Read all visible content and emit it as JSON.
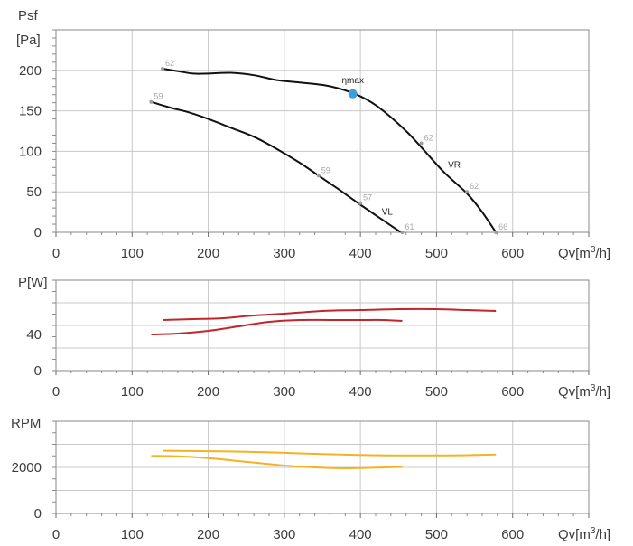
{
  "colors": {
    "pressure_curve": "#111111",
    "power": "#c0262b",
    "rpm": "#f4b223",
    "eta_max_point": "#3aa0dc"
  },
  "chart_data": [
    {
      "type": "line",
      "id": "pressure",
      "ylabel_line1": "Psf",
      "ylabel_line2": "[Pa]",
      "xlabel": "Qv[m³/h]",
      "xlim": [
        0,
        700
      ],
      "ylim": [
        0,
        250
      ],
      "xticks": [
        0,
        100,
        200,
        300,
        400,
        500,
        600
      ],
      "yticks": [
        0,
        50,
        100,
        150,
        200
      ],
      "grid": true,
      "series": [
        {
          "name": "VR",
          "points": [
            [
              140,
              202
            ],
            [
              160,
              199
            ],
            [
              180,
              196
            ],
            [
              200,
              196
            ],
            [
              230,
              197
            ],
            [
              260,
              194
            ],
            [
              290,
              188
            ],
            [
              320,
              185
            ],
            [
              350,
              182
            ],
            [
              370,
              178
            ],
            [
              390,
              172
            ],
            [
              410,
              163
            ],
            [
              430,
              150
            ],
            [
              460,
              125
            ],
            [
              480,
              105
            ],
            [
              510,
              74
            ],
            [
              540,
              48
            ],
            [
              560,
              25
            ],
            [
              578,
              0
            ]
          ],
          "annotations": [
            {
              "x": 140,
              "y": 202,
              "label": "62"
            },
            {
              "x": 480,
              "y": 110,
              "label": "62"
            },
            {
              "x": 540,
              "y": 50,
              "label": "62"
            },
            {
              "x": 578,
              "y": 0,
              "label": "66"
            }
          ]
        },
        {
          "name": "VL",
          "points": [
            [
              125,
              161
            ],
            [
              150,
              154
            ],
            [
              175,
              148
            ],
            [
              200,
              140
            ],
            [
              230,
              129
            ],
            [
              260,
              118
            ],
            [
              290,
              103
            ],
            [
              320,
              86
            ],
            [
              345,
              70
            ],
            [
              370,
              54
            ],
            [
              400,
              34
            ],
            [
              425,
              18
            ],
            [
              450,
              2
            ],
            [
              455,
              0
            ]
          ],
          "annotations": [
            {
              "x": 125,
              "y": 161,
              "label": "59"
            },
            {
              "x": 345,
              "y": 70,
              "label": "59"
            },
            {
              "x": 400,
              "y": 36,
              "label": "57"
            },
            {
              "x": 455,
              "y": 0,
              "label": "61"
            }
          ]
        }
      ],
      "marker": {
        "label": "ηmax",
        "x": 390,
        "y": 171
      }
    },
    {
      "type": "line",
      "id": "power",
      "ylabel": "P[W]",
      "xlabel": "Qv[m³/h]",
      "xlim": [
        0,
        700
      ],
      "ylim": [
        0,
        100
      ],
      "xticks": [
        0,
        100,
        200,
        300,
        400,
        500,
        600
      ],
      "yticks": [
        0,
        40
      ],
      "grid": true,
      "series": [
        {
          "name": "VR",
          "points": [
            [
              140,
              56
            ],
            [
              180,
              57
            ],
            [
              220,
              58
            ],
            [
              260,
              61
            ],
            [
              300,
              63
            ],
            [
              350,
              66
            ],
            [
              400,
              67
            ],
            [
              450,
              68
            ],
            [
              500,
              68
            ],
            [
              540,
              67
            ],
            [
              578,
              66
            ]
          ]
        },
        {
          "name": "VL",
          "points": [
            [
              125,
              40
            ],
            [
              160,
              41
            ],
            [
              200,
              44
            ],
            [
              240,
              49
            ],
            [
              280,
              54
            ],
            [
              320,
              56
            ],
            [
              360,
              56
            ],
            [
              400,
              56
            ],
            [
              430,
              56
            ],
            [
              455,
              55
            ]
          ]
        }
      ]
    },
    {
      "type": "line",
      "id": "rpm",
      "ylabel": "RPM",
      "xlabel": "Qv[m³/h]",
      "xlim": [
        0,
        700
      ],
      "ylim": [
        0,
        4000
      ],
      "xticks": [
        0,
        100,
        200,
        300,
        400,
        500,
        600
      ],
      "yticks": [
        0,
        2000
      ],
      "grid": true,
      "series": [
        {
          "name": "VR",
          "points": [
            [
              140,
              2720
            ],
            [
              200,
              2700
            ],
            [
              250,
              2680
            ],
            [
              300,
              2630
            ],
            [
              350,
              2580
            ],
            [
              400,
              2540
            ],
            [
              450,
              2520
            ],
            [
              500,
              2520
            ],
            [
              540,
              2530
            ],
            [
              578,
              2560
            ]
          ]
        },
        {
          "name": "VL",
          "points": [
            [
              125,
              2500
            ],
            [
              160,
              2480
            ],
            [
              200,
              2400
            ],
            [
              250,
              2240
            ],
            [
              300,
              2080
            ],
            [
              340,
              2000
            ],
            [
              380,
              1960
            ],
            [
              420,
              1990
            ],
            [
              455,
              2020
            ]
          ]
        }
      ]
    }
  ]
}
